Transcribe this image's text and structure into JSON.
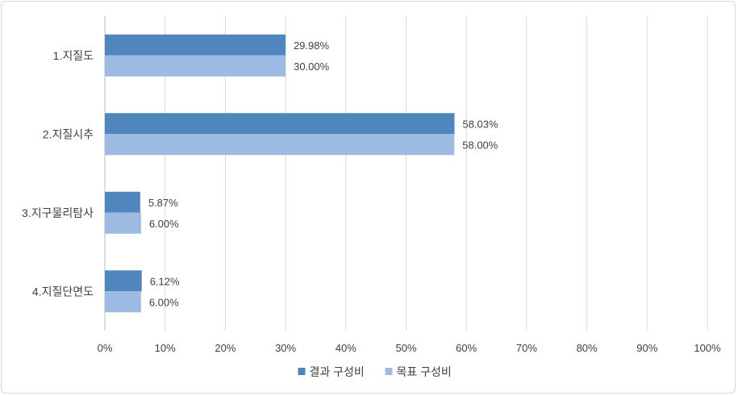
{
  "chart_data": {
    "type": "bar",
    "orientation": "horizontal",
    "categories": [
      "1.지질도",
      "2.지질시추",
      "3.지구물리탐사",
      "4.지질단면도"
    ],
    "series": [
      {
        "name": "결과 구성비",
        "color": "#4f86be",
        "values": [
          29.98,
          58.03,
          5.87,
          6.12
        ],
        "labels": [
          "29.98%",
          "58.03%",
          "5.87%",
          "6.12%"
        ]
      },
      {
        "name": "목표 구성비",
        "color": "#9dbbe2",
        "values": [
          30.0,
          58.0,
          6.0,
          6.0
        ],
        "labels": [
          "30.00%",
          "58.00%",
          "6.00%",
          "6.00%"
        ]
      }
    ],
    "xlim": [
      0,
      100
    ],
    "x_ticks": [
      "0%",
      "10%",
      "20%",
      "30%",
      "40%",
      "50%",
      "60%",
      "70%",
      "80%",
      "90%",
      "100%"
    ],
    "grid": true,
    "legend_position": "bottom"
  }
}
